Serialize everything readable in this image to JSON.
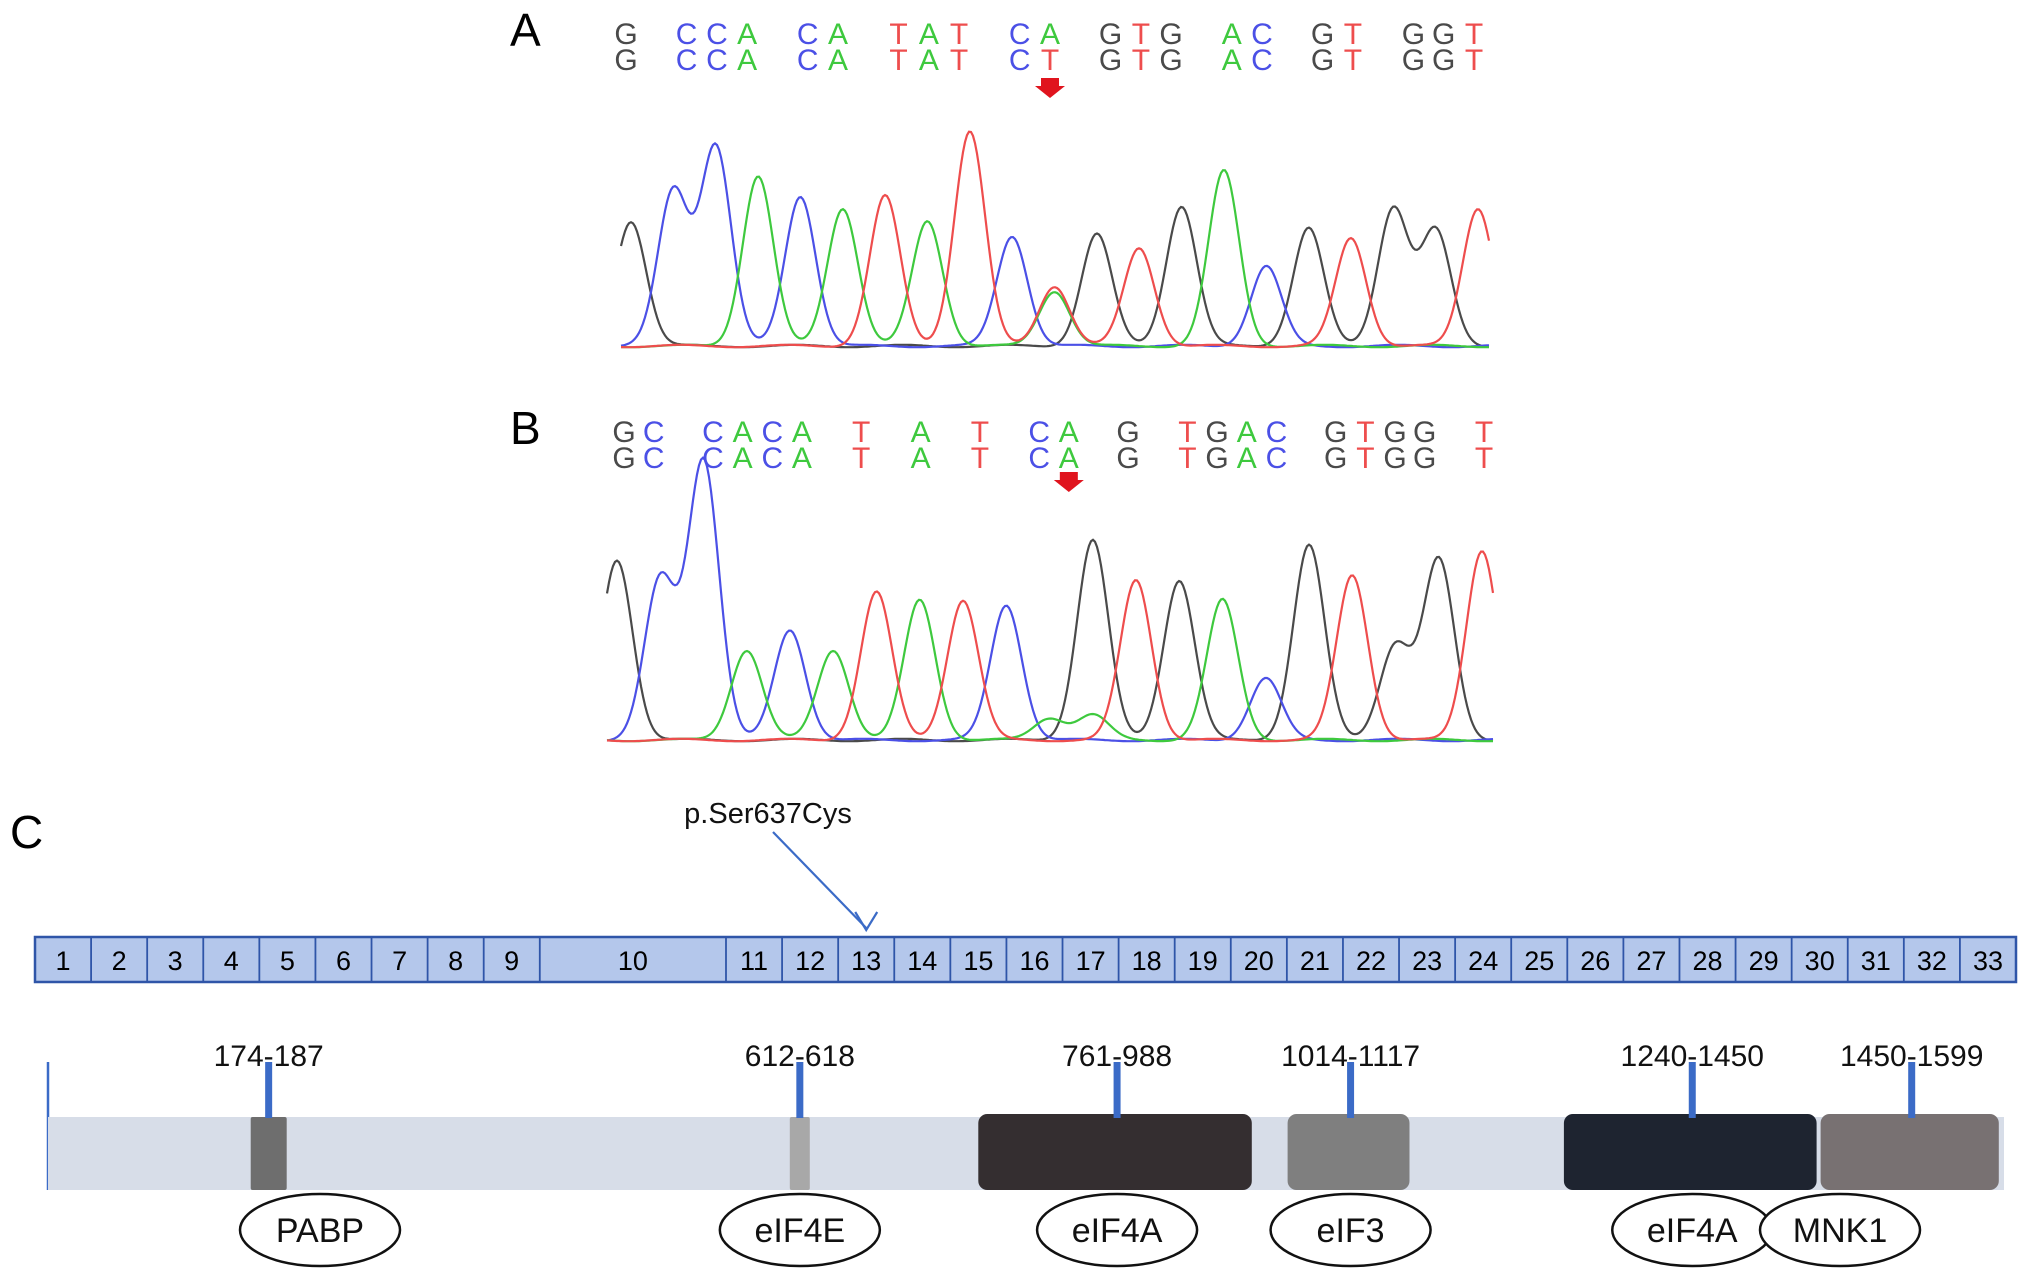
{
  "panels": {
    "a": "A",
    "b": "B",
    "c": "C"
  },
  "colors": {
    "A": "#3ec93e",
    "C": "#4b50e6",
    "G": "#4a4a4a",
    "T": "#ee4d4d",
    "arrow": "#e0141e",
    "exon_fill": "#b4c7eb",
    "exon_stroke": "#2f55a8",
    "marker": "#3b6bc7",
    "protein_bar": "#d7dde8"
  },
  "panel_a": {
    "sequence_top": "G CCA CA TAT CA GTG AC GT GGT",
    "sequence_bottom": "G CCA CA TAT CT GTG AC GT GGT",
    "arrow_index": 10,
    "trace_bases": [
      "G",
      "C",
      "C",
      "A",
      "C",
      "A",
      "T",
      "A",
      "T",
      "C",
      "T",
      "G",
      "T",
      "G",
      "A",
      "C",
      "G",
      "T",
      "G",
      "G",
      "T"
    ]
  },
  "panel_b": {
    "sequence_top": "GC CACA T A T CA G TGAC GTGG T",
    "sequence_bottom": "GC CACA T A T CA G TGAC GTGG T",
    "arrow_index": 10,
    "trace_bases": [
      "G",
      "C",
      "C",
      "A",
      "C",
      "A",
      "T",
      "A",
      "T",
      "C",
      "A",
      "G",
      "T",
      "G",
      "A",
      "C",
      "G",
      "T",
      "G",
      "G",
      "T"
    ]
  },
  "panel_c": {
    "mutation_label": "p.Ser637Cys",
    "mutation_exon": "13",
    "exons": [
      "1",
      "2",
      "3",
      "4",
      "5",
      "6",
      "7",
      "8",
      "9",
      "10",
      "11",
      "12",
      "13",
      "14",
      "15",
      "16",
      "17",
      "18",
      "19",
      "20",
      "21",
      "22",
      "23",
      "24",
      "25",
      "26",
      "27",
      "28",
      "29",
      "30",
      "31",
      "32",
      "33"
    ],
    "exon_widths": [
      25,
      25,
      25,
      25,
      25,
      25,
      25,
      25,
      25,
      83,
      25,
      25,
      25,
      25,
      25,
      25,
      25,
      25,
      25,
      25,
      25,
      25,
      25,
      25,
      25,
      25,
      25,
      25,
      25,
      25,
      25,
      25,
      25
    ],
    "protein_length": 1600,
    "domains": [
      {
        "range": "174-187",
        "start": 174,
        "end": 187,
        "name": "PABP",
        "color": "#6e6e6e"
      },
      {
        "range": "612-618",
        "start": 612,
        "end": 618,
        "name": "eIF4E",
        "color": "#a8a8a8"
      },
      {
        "range": "761-988",
        "start": 761,
        "end": 988,
        "name": "eIF4A",
        "color": "#342e30"
      },
      {
        "range": "1014-1117",
        "start": 1014,
        "end": 1117,
        "name": "eIF3",
        "color": "#7f7f7f"
      },
      {
        "range": "1240-1450",
        "start": 1240,
        "end": 1450,
        "name": "eIF4A",
        "color": "#1e2430"
      },
      {
        "range": "1450-1599",
        "start": 1450,
        "end": 1599,
        "name": "MNK1",
        "color": "#787172"
      }
    ]
  }
}
